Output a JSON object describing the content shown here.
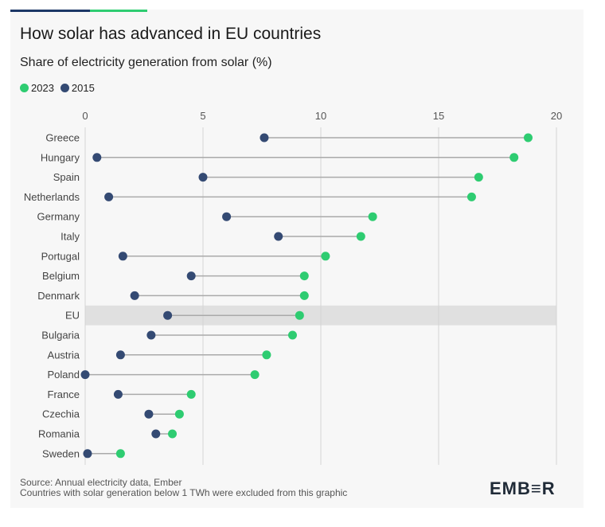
{
  "title": "How solar has advanced in EU countries",
  "subtitle": "Share of electricity generation from solar (%)",
  "legend": [
    {
      "label": "2023",
      "color": "#2ecc71"
    },
    {
      "label": "2015",
      "color": "#344a73"
    }
  ],
  "source_line1": "Source: Annual electricity data, Ember",
  "source_line2": "Countries with solar generation below 1 TWh were excluded from this graphic",
  "logo": "EMB≡R",
  "colors": {
    "y2023": "#2ecc71",
    "y2015": "#344a73",
    "connector": "#aaaaaa",
    "highlight": "#e0e0e0"
  },
  "chart_data": {
    "type": "dumbbell",
    "xlim": [
      0,
      20
    ],
    "xticks": [
      "0",
      "5",
      "10",
      "15",
      "20"
    ],
    "grid": true,
    "highlight_category": "EU",
    "categories": [
      "Greece",
      "Hungary",
      "Spain",
      "Netherlands",
      "Germany",
      "Italy",
      "Portugal",
      "Belgium",
      "Denmark",
      "EU",
      "Bulgaria",
      "Austria",
      "Poland",
      "France",
      "Czechia",
      "Romania",
      "Sweden"
    ],
    "series": [
      {
        "name": "2023",
        "values": [
          18.8,
          18.2,
          16.7,
          16.4,
          12.2,
          11.7,
          10.2,
          9.3,
          9.3,
          9.1,
          8.8,
          7.7,
          7.2,
          4.5,
          4.0,
          3.7,
          1.5
        ]
      },
      {
        "name": "2015",
        "values": [
          7.6,
          0.5,
          5.0,
          1.0,
          6.0,
          8.2,
          1.6,
          4.5,
          2.1,
          3.5,
          2.8,
          1.5,
          0.0,
          1.4,
          2.7,
          3.0,
          0.1
        ]
      }
    ]
  }
}
